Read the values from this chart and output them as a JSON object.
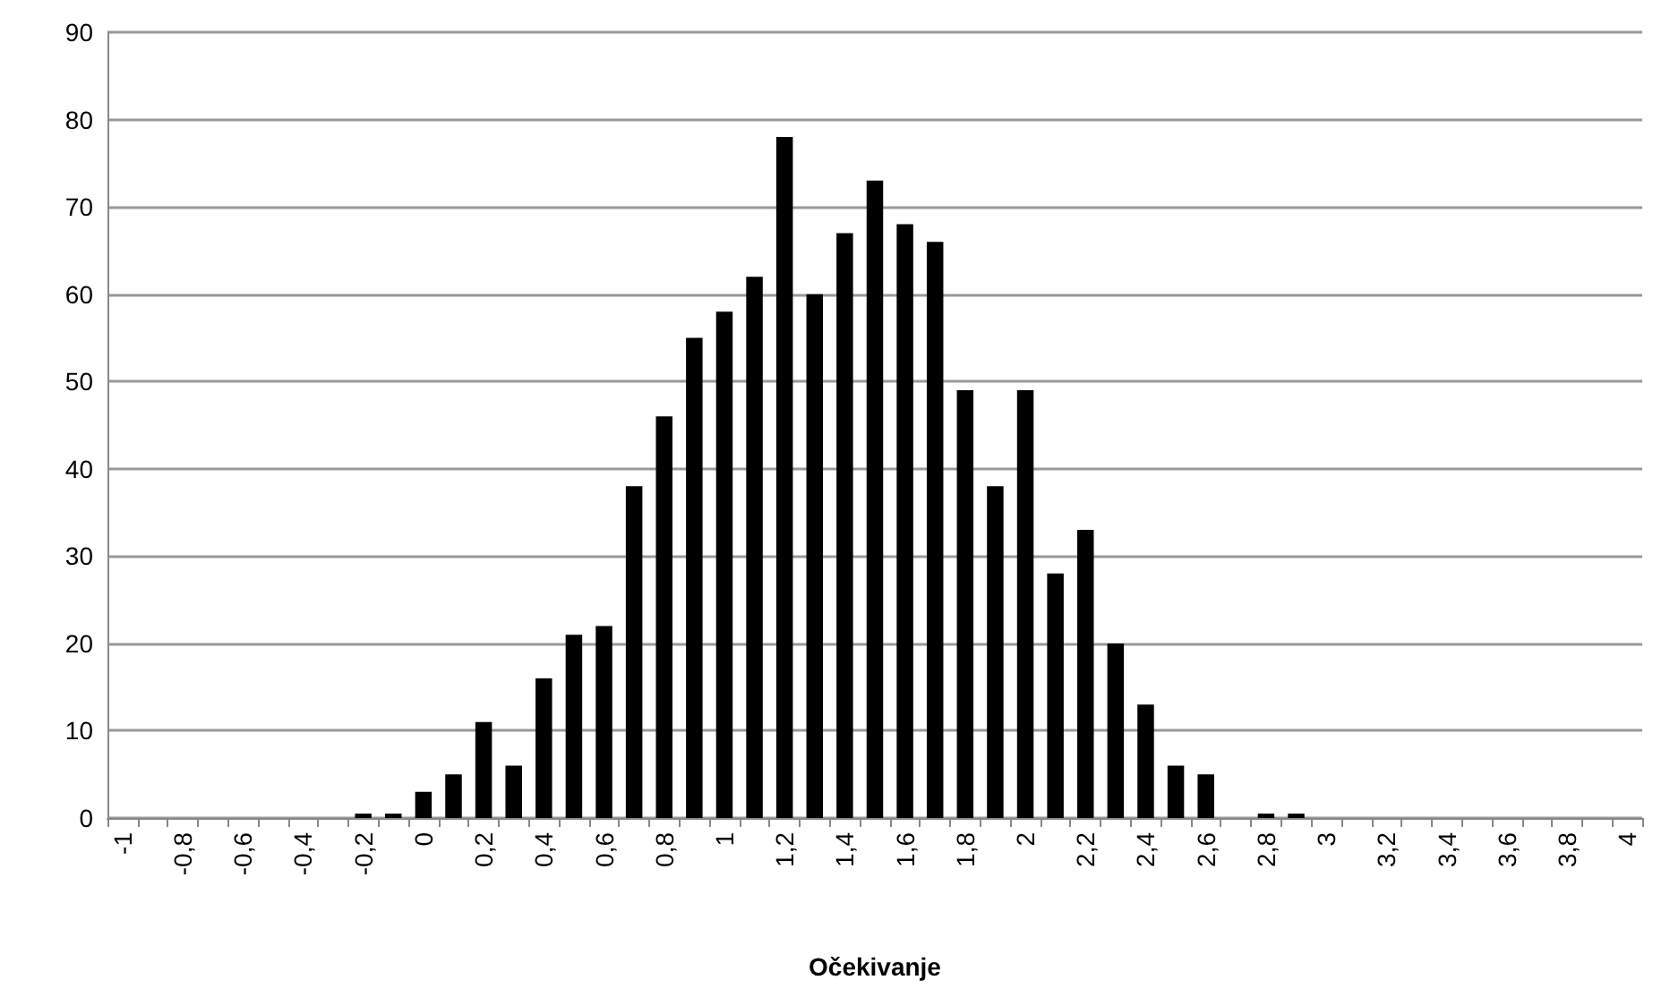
{
  "chart_data": {
    "type": "bar",
    "xlabel": "Očekivanje",
    "categories": [
      "-1",
      null,
      "-0,8",
      null,
      "-0,6",
      null,
      "-0,4",
      null,
      "-0,2",
      null,
      "0",
      null,
      "0,2",
      null,
      "0,4",
      null,
      "0,6",
      null,
      "0,8",
      null,
      "1",
      null,
      "1,2",
      null,
      "1,4",
      null,
      "1,6",
      null,
      "1,8",
      null,
      "2",
      null,
      "2,2",
      null,
      "2,4",
      null,
      "2,6",
      null,
      "2,8",
      null,
      "3",
      null,
      "3,2",
      null,
      "3,4",
      null,
      "3,6",
      null,
      "3,8",
      null,
      "4"
    ],
    "values": [
      0,
      0,
      0,
      0,
      0,
      0,
      0,
      0,
      0.5,
      0.5,
      3,
      5,
      11,
      6,
      16,
      21,
      22,
      38,
      46,
      55,
      58,
      62,
      78,
      60,
      67,
      73,
      68,
      66,
      49,
      38,
      49,
      28,
      33,
      20,
      13,
      6,
      5,
      0,
      0.5,
      0.5,
      0,
      0,
      0,
      0,
      0,
      0,
      0,
      0,
      0,
      0,
      0
    ],
    "color": "#000000",
    "ylim": [
      0,
      90
    ],
    "yticks": [
      0,
      10,
      20,
      30,
      40,
      50,
      60,
      70,
      80,
      90
    ],
    "grid": "y"
  }
}
